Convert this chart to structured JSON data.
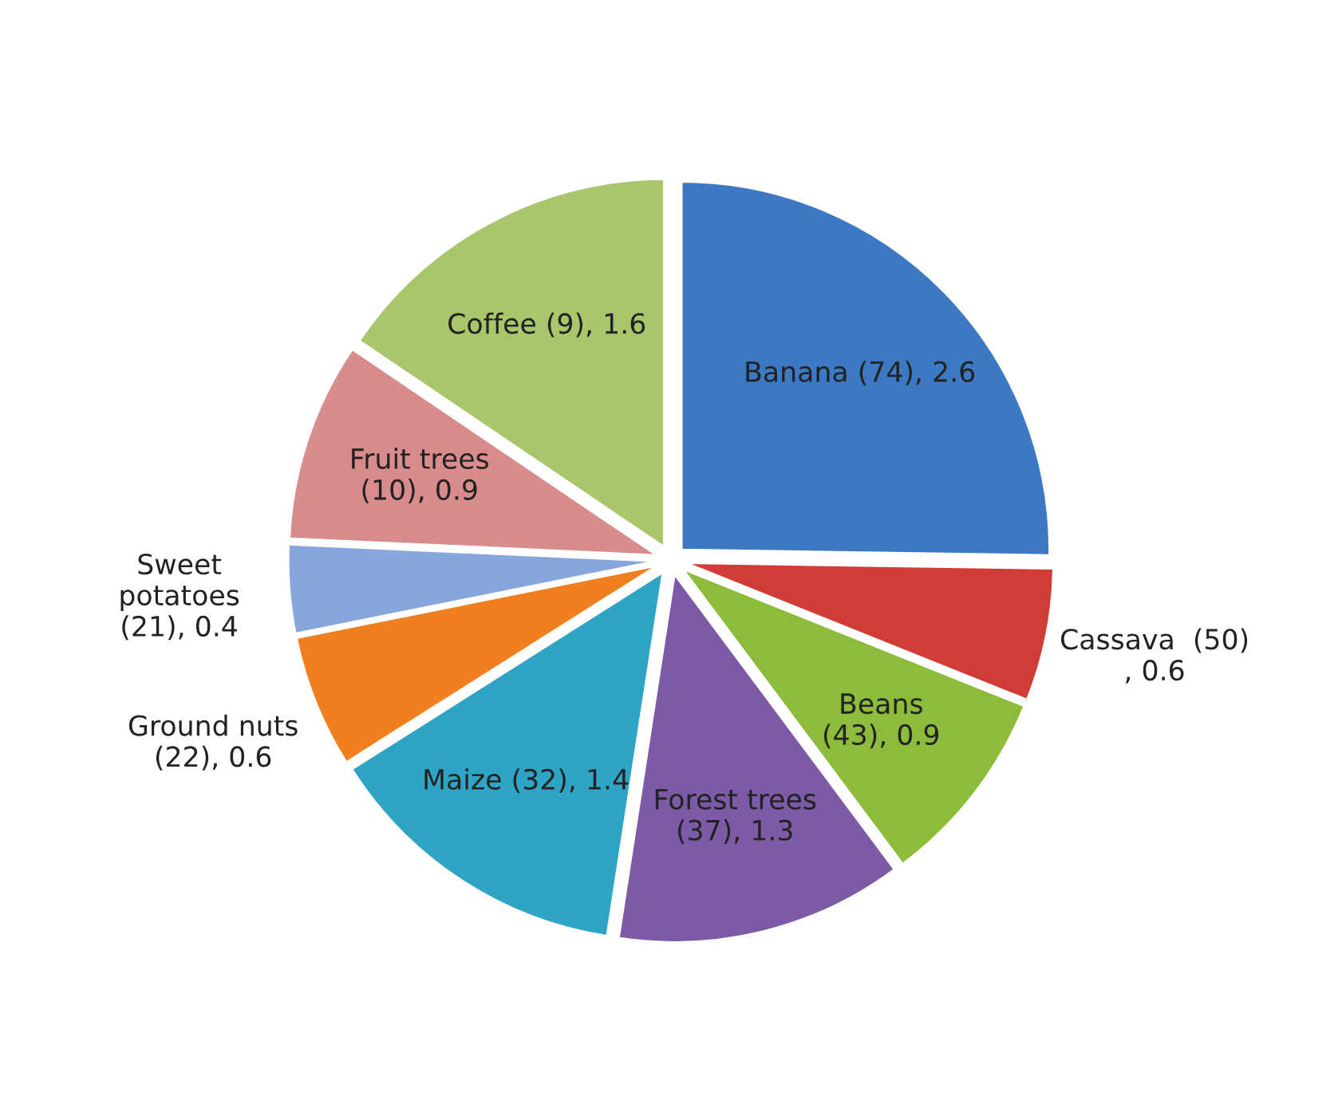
{
  "chart_data": {
    "type": "pie",
    "categories": [
      "Banana (74), 2.6",
      "Cassava  (50)\n, 0.6",
      "Beans\n(43), 0.9",
      "Forest trees\n(37), 1.3",
      "Maize (32), 1.4",
      "Ground nuts\n(22), 0.6",
      "Sweet\npotatoes\n(21), 0.4",
      "Fruit trees\n(10), 0.9",
      "Coffee (9), 1.6"
    ],
    "values": [
      2.6,
      0.6,
      0.9,
      1.3,
      1.4,
      0.6,
      0.4,
      0.9,
      1.6
    ],
    "colors": [
      "#3d78c2",
      "#d23c36",
      "#8dbb3b",
      "#7d5aa6",
      "#2fa4c4",
      "#f0801f",
      "#86a6dc",
      "#d98c8c",
      "#a9c66b"
    ]
  }
}
